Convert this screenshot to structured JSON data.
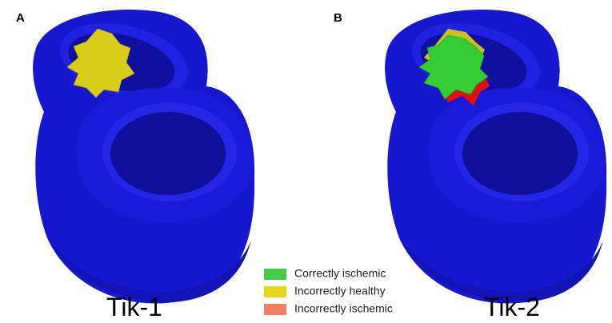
{
  "panels": [
    {
      "label": "A",
      "caption": "Tik-1"
    },
    {
      "label": "B",
      "caption": "Tik-2"
    }
  ],
  "legend": [
    {
      "label": "Correctly ischemic",
      "color": "#44cc44"
    },
    {
      "label": "Incorrectly healthy",
      "color": "#e6d61c"
    },
    {
      "label": "Incorrectly ischemic",
      "color": "#f08060"
    }
  ]
}
